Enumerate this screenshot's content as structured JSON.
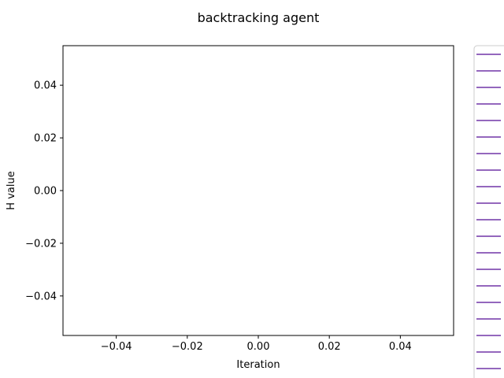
{
  "chart_data": {
    "type": "line",
    "title": "backtracking agent",
    "xlabel": "Iteration",
    "ylabel": "H value",
    "xlim": [
      -0.055,
      0.055
    ],
    "ylim": [
      -0.055,
      0.055
    ],
    "xticks": [
      -0.04,
      -0.02,
      0.0,
      0.02,
      0.04
    ],
    "xtick_labels": [
      "−0.04",
      "−0.02",
      "0.00",
      "0.02",
      "0.04"
    ],
    "yticks": [
      -0.04,
      -0.02,
      0.0,
      0.02,
      0.04
    ],
    "ytick_labels": [
      "−0.04",
      "−0.02",
      "0.00",
      "0.02",
      "0.04"
    ],
    "grid": false,
    "series": [],
    "legend": {
      "placement": "outside-right",
      "entry_count": 20,
      "line_color": "#9467bd",
      "labels_visible": false
    }
  }
}
